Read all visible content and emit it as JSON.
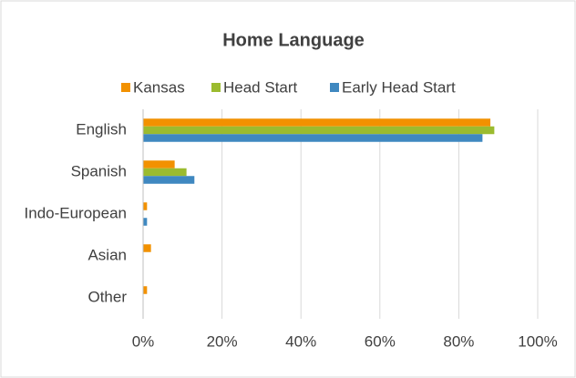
{
  "chart_data": {
    "type": "bar",
    "orientation": "horizontal",
    "title": "Home Language",
    "categories": [
      "English",
      "Spanish",
      "Indo-European",
      "Asian",
      "Other"
    ],
    "series": [
      {
        "name": "Kansas",
        "color": "#f29100",
        "values": [
          88,
          8,
          1,
          2,
          1
        ]
      },
      {
        "name": "Head Start",
        "color": "#9bbb2f",
        "values": [
          89,
          11,
          0,
          0,
          0
        ]
      },
      {
        "name": "Early Head Start",
        "color": "#3f88c0",
        "values": [
          86,
          13,
          1,
          0,
          0
        ]
      }
    ],
    "xlim": [
      0,
      100
    ],
    "xticks": [
      {
        "value": 0,
        "label": "0%"
      },
      {
        "value": 20,
        "label": "20%"
      },
      {
        "value": 40,
        "label": "40%"
      },
      {
        "value": 60,
        "label": "60%"
      },
      {
        "value": 80,
        "label": "80%"
      },
      {
        "value": 100,
        "label": "100%"
      }
    ],
    "grid": true,
    "legend": "top"
  }
}
